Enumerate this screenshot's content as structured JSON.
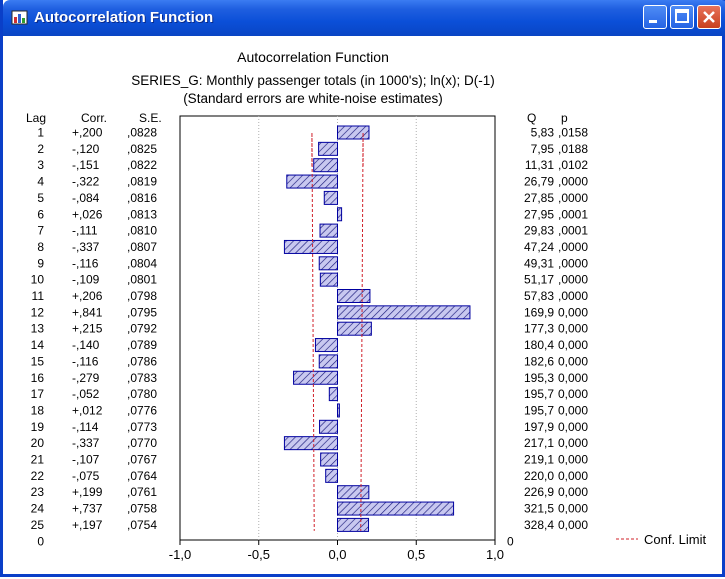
{
  "window": {
    "title": "Autocorrelation Function"
  },
  "legend": {
    "label": "Conf. Limit"
  },
  "chart_data": {
    "type": "bar",
    "orientation": "horizontal",
    "title": "Autocorrelation Function",
    "subtitle": "SERIES_G: Monthly passenger totals (in 1000's); ln(x); D(-1)",
    "note": "(Standard errors are white-noise estimates)",
    "columns": {
      "lag": "Lag",
      "corr": "Corr.",
      "se": "S.E.",
      "q": "Q",
      "p": "p"
    },
    "rows": [
      {
        "lag": "1",
        "corr": "+,200",
        "se": ",0828",
        "q": "5,83",
        "p": ",0158",
        "value": 0.2,
        "se_value": 0.0828
      },
      {
        "lag": "2",
        "corr": "-,120",
        "se": ",0825",
        "q": "7,95",
        "p": ",0188",
        "value": -0.12,
        "se_value": 0.0825
      },
      {
        "lag": "3",
        "corr": "-,151",
        "se": ",0822",
        "q": "11,31",
        "p": ",0102",
        "value": -0.151,
        "se_value": 0.0822
      },
      {
        "lag": "4",
        "corr": "-,322",
        "se": ",0819",
        "q": "26,79",
        "p": ",0000",
        "value": -0.322,
        "se_value": 0.0819
      },
      {
        "lag": "5",
        "corr": "-,084",
        "se": ",0816",
        "q": "27,85",
        "p": ",0000",
        "value": -0.084,
        "se_value": 0.0816
      },
      {
        "lag": "6",
        "corr": "+,026",
        "se": ",0813",
        "q": "27,95",
        "p": ",0001",
        "value": 0.026,
        "se_value": 0.0813
      },
      {
        "lag": "7",
        "corr": "-,111",
        "se": ",0810",
        "q": "29,83",
        "p": ",0001",
        "value": -0.111,
        "se_value": 0.081
      },
      {
        "lag": "8",
        "corr": "-,337",
        "se": ",0807",
        "q": "47,24",
        "p": ",0000",
        "value": -0.337,
        "se_value": 0.0807
      },
      {
        "lag": "9",
        "corr": "-,116",
        "se": ",0804",
        "q": "49,31",
        "p": ",0000",
        "value": -0.116,
        "se_value": 0.0804
      },
      {
        "lag": "10",
        "corr": "-,109",
        "se": ",0801",
        "q": "51,17",
        "p": ",0000",
        "value": -0.109,
        "se_value": 0.0801
      },
      {
        "lag": "11",
        "corr": "+,206",
        "se": ",0798",
        "q": "57,83",
        "p": ",0000",
        "value": 0.206,
        "se_value": 0.0798
      },
      {
        "lag": "12",
        "corr": "+,841",
        "se": ",0795",
        "q": "169,9",
        "p": "0,000",
        "value": 0.841,
        "se_value": 0.0795
      },
      {
        "lag": "13",
        "corr": "+,215",
        "se": ",0792",
        "q": "177,3",
        "p": "0,000",
        "value": 0.215,
        "se_value": 0.0792
      },
      {
        "lag": "14",
        "corr": "-,140",
        "se": ",0789",
        "q": "180,4",
        "p": "0,000",
        "value": -0.14,
        "se_value": 0.0789
      },
      {
        "lag": "15",
        "corr": "-,116",
        "se": ",0786",
        "q": "182,6",
        "p": "0,000",
        "value": -0.116,
        "se_value": 0.0786
      },
      {
        "lag": "16",
        "corr": "-,279",
        "se": ",0783",
        "q": "195,3",
        "p": "0,000",
        "value": -0.279,
        "se_value": 0.0783
      },
      {
        "lag": "17",
        "corr": "-,052",
        "se": ",0780",
        "q": "195,7",
        "p": "0,000",
        "value": -0.052,
        "se_value": 0.078
      },
      {
        "lag": "18",
        "corr": "+,012",
        "se": ",0776",
        "q": "195,7",
        "p": "0,000",
        "value": 0.012,
        "se_value": 0.0776
      },
      {
        "lag": "19",
        "corr": "-,114",
        "se": ",0773",
        "q": "197,9",
        "p": "0,000",
        "value": -0.114,
        "se_value": 0.0773
      },
      {
        "lag": "20",
        "corr": "-,337",
        "se": ",0770",
        "q": "217,1",
        "p": "0,000",
        "value": -0.337,
        "se_value": 0.077
      },
      {
        "lag": "21",
        "corr": "-,107",
        "se": ",0767",
        "q": "219,1",
        "p": "0,000",
        "value": -0.107,
        "se_value": 0.0767
      },
      {
        "lag": "22",
        "corr": "-,075",
        "se": ",0764",
        "q": "220,0",
        "p": "0,000",
        "value": -0.075,
        "se_value": 0.0764
      },
      {
        "lag": "23",
        "corr": "+,199",
        "se": ",0761",
        "q": "226,9",
        "p": "0,000",
        "value": 0.199,
        "se_value": 0.0761
      },
      {
        "lag": "24",
        "corr": "+,737",
        "se": ",0758",
        "q": "321,5",
        "p": "0,000",
        "value": 0.737,
        "se_value": 0.0758
      },
      {
        "lag": "25",
        "corr": "+,197",
        "se": ",0754",
        "q": "328,4",
        "p": "0,000",
        "value": 0.197,
        "se_value": 0.0754
      }
    ],
    "bottom_row": {
      "lag": "0",
      "q": "0"
    },
    "xlim": [
      -1,
      1
    ],
    "xticks": [
      -1.0,
      -0.5,
      0.0,
      0.5,
      1.0
    ],
    "xtick_labels": [
      "-1,0",
      "-0,5",
      "0,0",
      "0,5",
      "1,0"
    ],
    "grid": true,
    "confidence_multiplier": 1.96,
    "legend_position": "bottom-right",
    "colors": {
      "bar_fill": "#c8c8f0",
      "bar_hatch": "#1a1a7a",
      "bar_border": "#0000a0",
      "conf_limit": "#d0202a",
      "grid": "#b0b0b0"
    }
  }
}
